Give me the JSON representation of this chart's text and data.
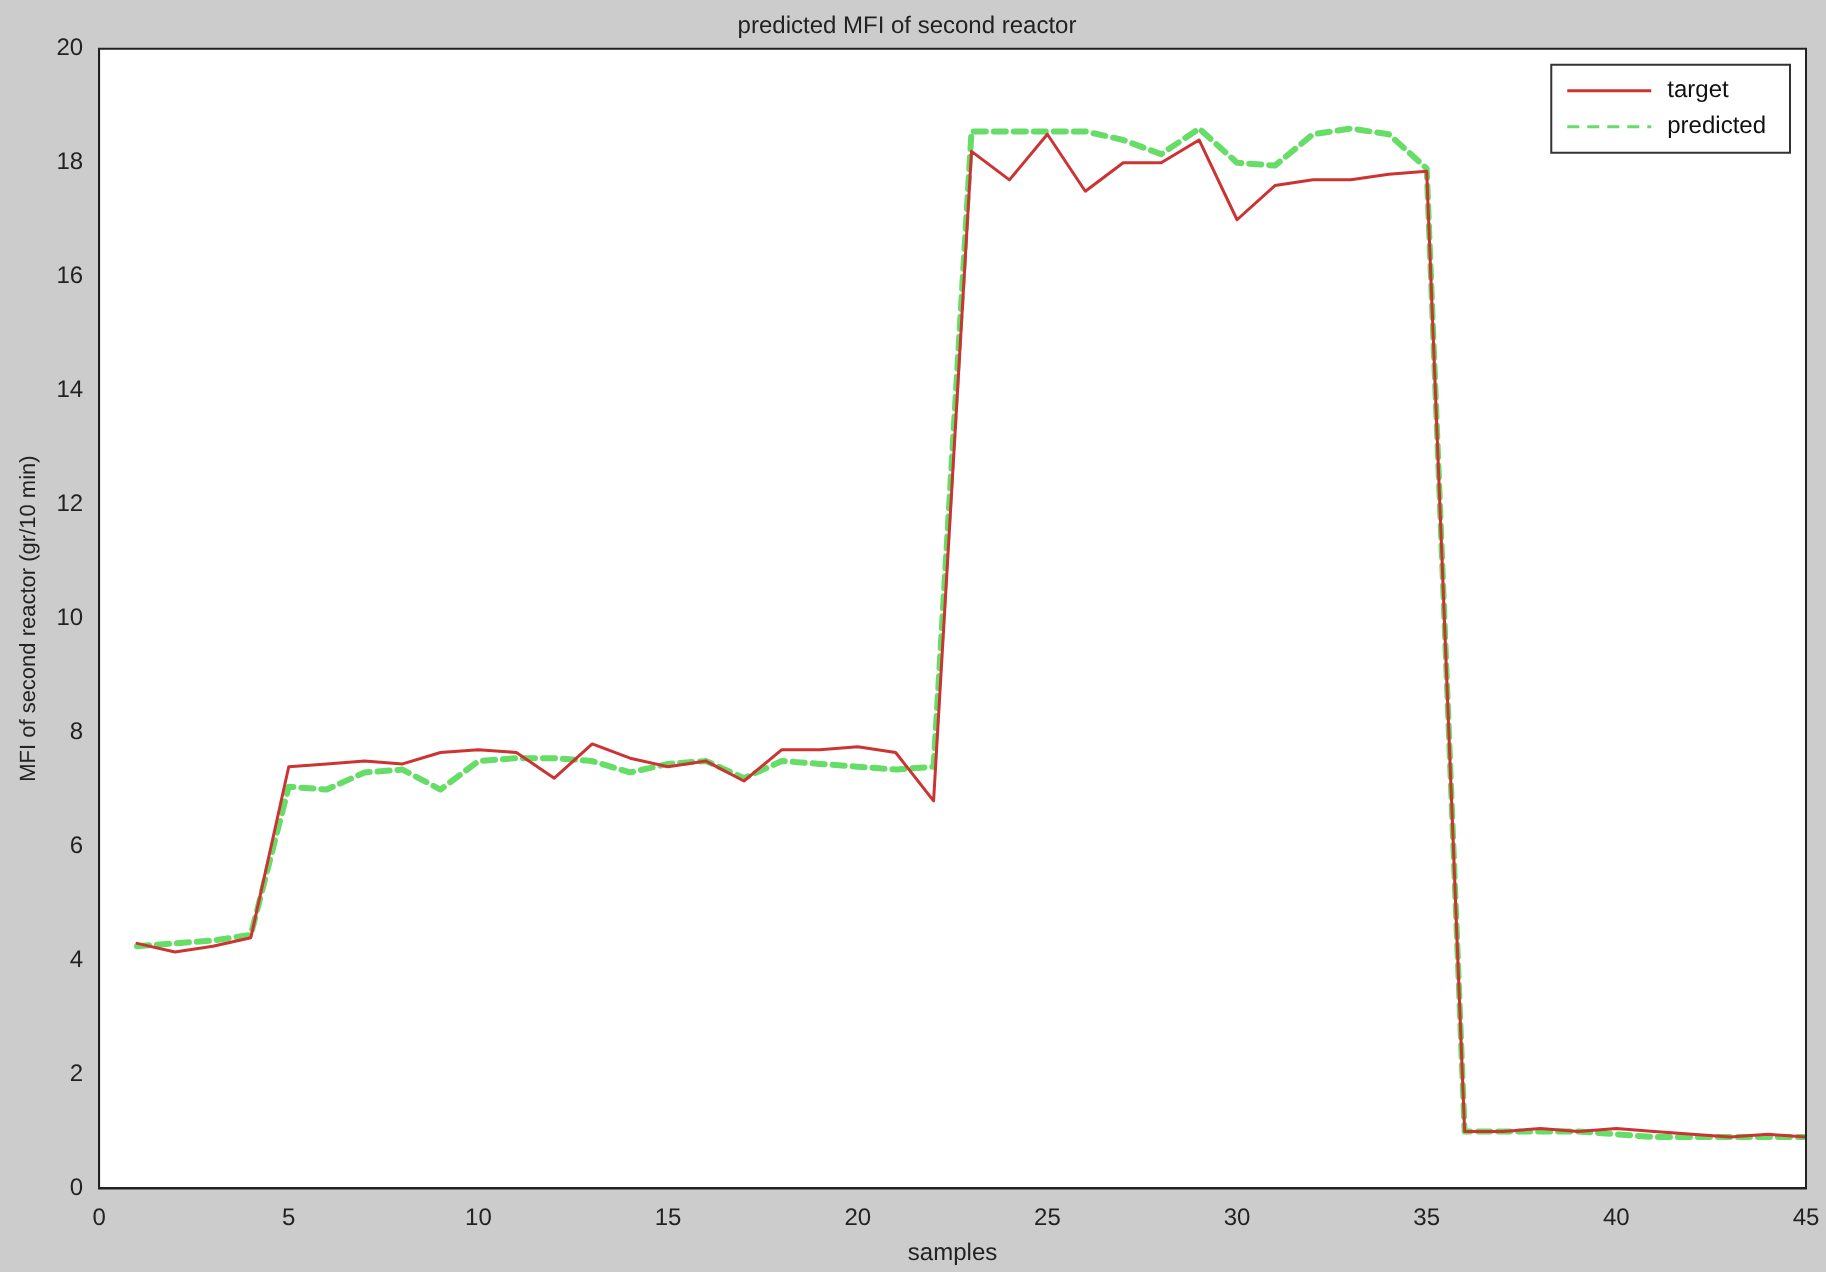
{
  "chart_data": {
    "type": "line",
    "title": "predicted MFI of second reactor",
    "xlabel": "samples",
    "ylabel": "MFI of second reactor (gr/10 min)",
    "x": [
      1,
      2,
      3,
      4,
      5,
      6,
      7,
      8,
      9,
      10,
      11,
      12,
      13,
      14,
      15,
      16,
      17,
      18,
      19,
      20,
      21,
      22,
      23,
      24,
      25,
      26,
      27,
      28,
      29,
      30,
      31,
      32,
      33,
      34,
      35,
      36,
      37,
      38,
      39,
      40,
      41,
      42,
      43,
      44,
      45
    ],
    "series": [
      {
        "name": "target",
        "color": "#cc3333",
        "line_style": "solid",
        "values": [
          4.3,
          4.15,
          4.25,
          4.4,
          7.4,
          7.45,
          7.5,
          7.45,
          7.65,
          7.7,
          7.65,
          7.2,
          7.8,
          7.55,
          7.4,
          7.5,
          7.15,
          7.7,
          7.7,
          7.75,
          7.65,
          6.8,
          18.2,
          17.7,
          18.5,
          17.5,
          18.0,
          18.0,
          18.4,
          17.0,
          17.6,
          17.7,
          17.7,
          17.8,
          17.85,
          1.0,
          1.0,
          1.05,
          1.0,
          1.05,
          1.0,
          0.95,
          0.9,
          0.95,
          0.9
        ]
      },
      {
        "name": "predicted",
        "color": "#66dd66",
        "line_style": "dashed",
        "values": [
          4.25,
          4.3,
          4.35,
          4.45,
          7.05,
          7.0,
          7.3,
          7.35,
          7.0,
          7.5,
          7.55,
          7.55,
          7.5,
          7.3,
          7.45,
          7.5,
          7.2,
          7.5,
          7.45,
          7.4,
          7.35,
          7.4,
          18.55,
          18.55,
          18.55,
          18.55,
          18.4,
          18.15,
          18.6,
          18.0,
          17.95,
          18.5,
          18.6,
          18.5,
          17.9,
          1.0,
          1.0,
          1.0,
          1.0,
          0.95,
          0.9,
          0.9,
          0.9,
          0.9,
          0.9
        ]
      }
    ],
    "xlim": [
      0,
      45
    ],
    "xticks": [
      0,
      5,
      10,
      15,
      20,
      25,
      30,
      35,
      40,
      45
    ],
    "ylim": [
      0,
      20
    ],
    "yticks": [
      0,
      2,
      4,
      6,
      8,
      10,
      12,
      14,
      16,
      18,
      20
    ],
    "grid": false,
    "legend": "top right",
    "marker": "none"
  }
}
